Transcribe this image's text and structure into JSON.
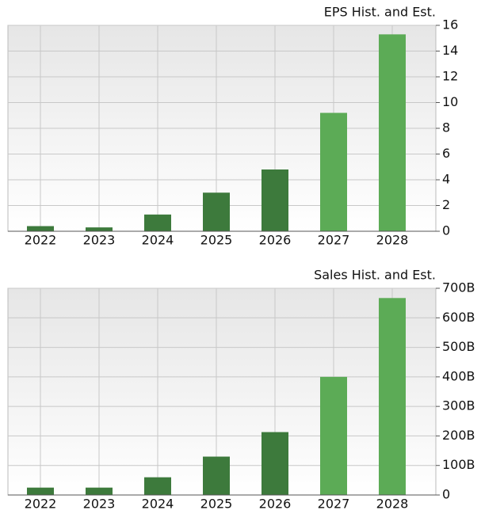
{
  "chart_data": [
    {
      "type": "bar",
      "title": "EPS Hist. and Est.",
      "categories": [
        "2022",
        "2023",
        "2024",
        "2025",
        "2026",
        "2027",
        "2028"
      ],
      "values": [
        0.4,
        0.3,
        1.3,
        3.0,
        4.8,
        9.2,
        15.3
      ],
      "colors": [
        "#3d7a3c",
        "#3d7a3c",
        "#3d7a3c",
        "#3d7a3c",
        "#3d7a3c",
        "#5cab56",
        "#5cab56"
      ],
      "ylim": [
        0,
        16
      ],
      "yticks": [
        0,
        2,
        4,
        6,
        8,
        10,
        12,
        14,
        16
      ],
      "grid": true
    },
    {
      "type": "bar",
      "title": "Sales Hist. and Est.",
      "categories": [
        "2022",
        "2023",
        "2024",
        "2025",
        "2026",
        "2027",
        "2028"
      ],
      "values": [
        25,
        25,
        60,
        130,
        213,
        400,
        667
      ],
      "colors": [
        "#3d7a3c",
        "#3d7a3c",
        "#3d7a3c",
        "#3d7a3c",
        "#3d7a3c",
        "#5cab56",
        "#5cab56"
      ],
      "ylim": [
        0,
        700
      ],
      "yticks": [
        0,
        {
          "value": 100,
          "label": "100B"
        },
        {
          "value": 200,
          "label": "200B"
        },
        {
          "value": 300,
          "label": "300B"
        },
        {
          "value": 400,
          "label": "400B"
        },
        {
          "value": 500,
          "label": "500B"
        },
        {
          "value": 600,
          "label": "600B"
        },
        {
          "value": 700,
          "label": "700B"
        }
      ],
      "grid": true
    }
  ]
}
